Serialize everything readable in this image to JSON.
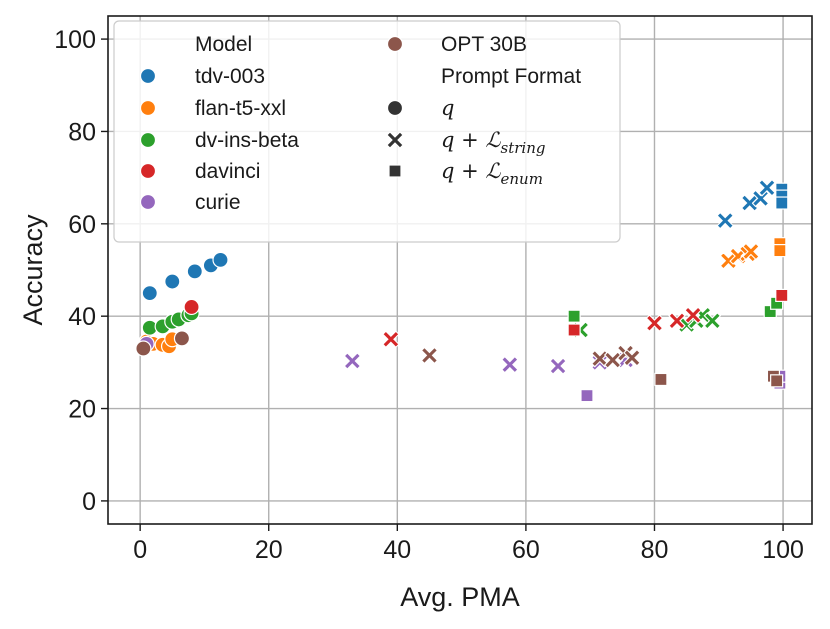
{
  "chart_data": {
    "type": "scatter",
    "xlabel": "Avg. PMA",
    "ylabel": "Accuracy",
    "xlim": [
      -5,
      104.5
    ],
    "ylim": [
      -5,
      105
    ],
    "xticks": [
      0,
      20,
      40,
      60,
      80,
      100
    ],
    "yticks": [
      0,
      20,
      40,
      60,
      80,
      100
    ],
    "grid": true,
    "legend_position": "top-left",
    "legend": {
      "model_title": "Model",
      "format_title": "Prompt Format",
      "models": [
        {
          "name": "tdv-003",
          "color": "#1f77b4"
        },
        {
          "name": "flan-t5-xxl",
          "color": "#ff7f0e"
        },
        {
          "name": "dv-ins-beta",
          "color": "#2ca02c"
        },
        {
          "name": "davinci",
          "color": "#d62728"
        },
        {
          "name": "curie",
          "color": "#9467bd"
        },
        {
          "name": "OPT 30B",
          "color": "#8c564b"
        }
      ],
      "formats": [
        {
          "marker": "circle",
          "label": "q",
          "base": "q",
          "sub": ""
        },
        {
          "marker": "x",
          "label": "q + ℒ_string",
          "base": "q + ℒ",
          "sub": "string"
        },
        {
          "marker": "square",
          "label": "q + ℒ_enum",
          "base": "q + ℒ",
          "sub": "enum"
        }
      ]
    },
    "series": [
      {
        "model": "tdv-003",
        "format": "q",
        "points": [
          [
            1.5,
            45
          ],
          [
            5,
            47.5
          ],
          [
            8.5,
            49.7
          ],
          [
            11,
            51
          ],
          [
            12.5,
            52.2
          ]
        ]
      },
      {
        "model": "tdv-003",
        "format": "q + ℒ_string",
        "points": [
          [
            91,
            60.7
          ],
          [
            94.8,
            64.5
          ],
          [
            96.5,
            65.5
          ],
          [
            97.5,
            67.8
          ]
        ]
      },
      {
        "model": "tdv-003",
        "format": "q + ℒ_enum",
        "points": [
          [
            99.8,
            67.5
          ],
          [
            99.8,
            66
          ],
          [
            99.8,
            64.5
          ]
        ]
      },
      {
        "model": "flan-t5-xxl",
        "format": "q",
        "points": [
          [
            1,
            34.5
          ],
          [
            2,
            34
          ],
          [
            3.5,
            33.8
          ],
          [
            4.5,
            33.5
          ],
          [
            5,
            35
          ]
        ]
      },
      {
        "model": "flan-t5-xxl",
        "format": "q + ℒ_string",
        "points": [
          [
            91.5,
            52
          ],
          [
            93,
            53
          ],
          [
            94.5,
            53.5
          ],
          [
            95,
            54
          ]
        ]
      },
      {
        "model": "flan-t5-xxl",
        "format": "q + ℒ_enum",
        "points": [
          [
            99.5,
            55.7
          ],
          [
            99.5,
            54.2
          ]
        ]
      },
      {
        "model": "dv-ins-beta",
        "format": "q",
        "points": [
          [
            1.5,
            37.5
          ],
          [
            3.5,
            37.8
          ],
          [
            5,
            38.8
          ],
          [
            6,
            39.3
          ],
          [
            7.5,
            40.2
          ],
          [
            8,
            40.6
          ]
        ]
      },
      {
        "model": "dv-ins-beta",
        "format": "q + ℒ_string",
        "points": [
          [
            68.5,
            37
          ],
          [
            85,
            38.2
          ],
          [
            86.5,
            39
          ],
          [
            87.5,
            40.2
          ],
          [
            89,
            39
          ]
        ]
      },
      {
        "model": "dv-ins-beta",
        "format": "q + ℒ_enum",
        "points": [
          [
            67.5,
            40
          ],
          [
            98,
            41
          ],
          [
            99,
            42.8
          ]
        ]
      },
      {
        "model": "davinci",
        "format": "q",
        "points": [
          [
            8,
            42
          ]
        ]
      },
      {
        "model": "davinci",
        "format": "q + ℒ_string",
        "points": [
          [
            39,
            35
          ],
          [
            80,
            38.5
          ],
          [
            83.5,
            39
          ],
          [
            86,
            40.2
          ]
        ]
      },
      {
        "model": "davinci",
        "format": "q + ℒ_enum",
        "points": [
          [
            67.5,
            37
          ],
          [
            99.8,
            44.5
          ]
        ]
      },
      {
        "model": "curie",
        "format": "q",
        "points": [
          [
            1,
            34
          ]
        ]
      },
      {
        "model": "curie",
        "format": "q + ℒ_string",
        "points": [
          [
            33,
            30.3
          ],
          [
            57.5,
            29.5
          ],
          [
            65,
            29.2
          ],
          [
            71.5,
            30
          ],
          [
            75.5,
            30.5
          ]
        ]
      },
      {
        "model": "curie",
        "format": "q + ℒ_enum",
        "points": [
          [
            69.5,
            22.8
          ],
          [
            99.5,
            25.5
          ],
          [
            99.5,
            27
          ]
        ]
      },
      {
        "model": "OPT 30B",
        "format": "q",
        "points": [
          [
            0.5,
            33
          ],
          [
            6.5,
            35.2
          ]
        ]
      },
      {
        "model": "OPT 30B",
        "format": "q + ℒ_string",
        "points": [
          [
            45,
            31.5
          ],
          [
            71.5,
            30.8
          ],
          [
            73.5,
            30.5
          ],
          [
            75.5,
            32
          ],
          [
            76.5,
            31
          ]
        ]
      },
      {
        "model": "OPT 30B",
        "format": "q + ℒ_enum",
        "points": [
          [
            81,
            26.3
          ],
          [
            98.5,
            27
          ],
          [
            99,
            26
          ]
        ]
      }
    ]
  }
}
